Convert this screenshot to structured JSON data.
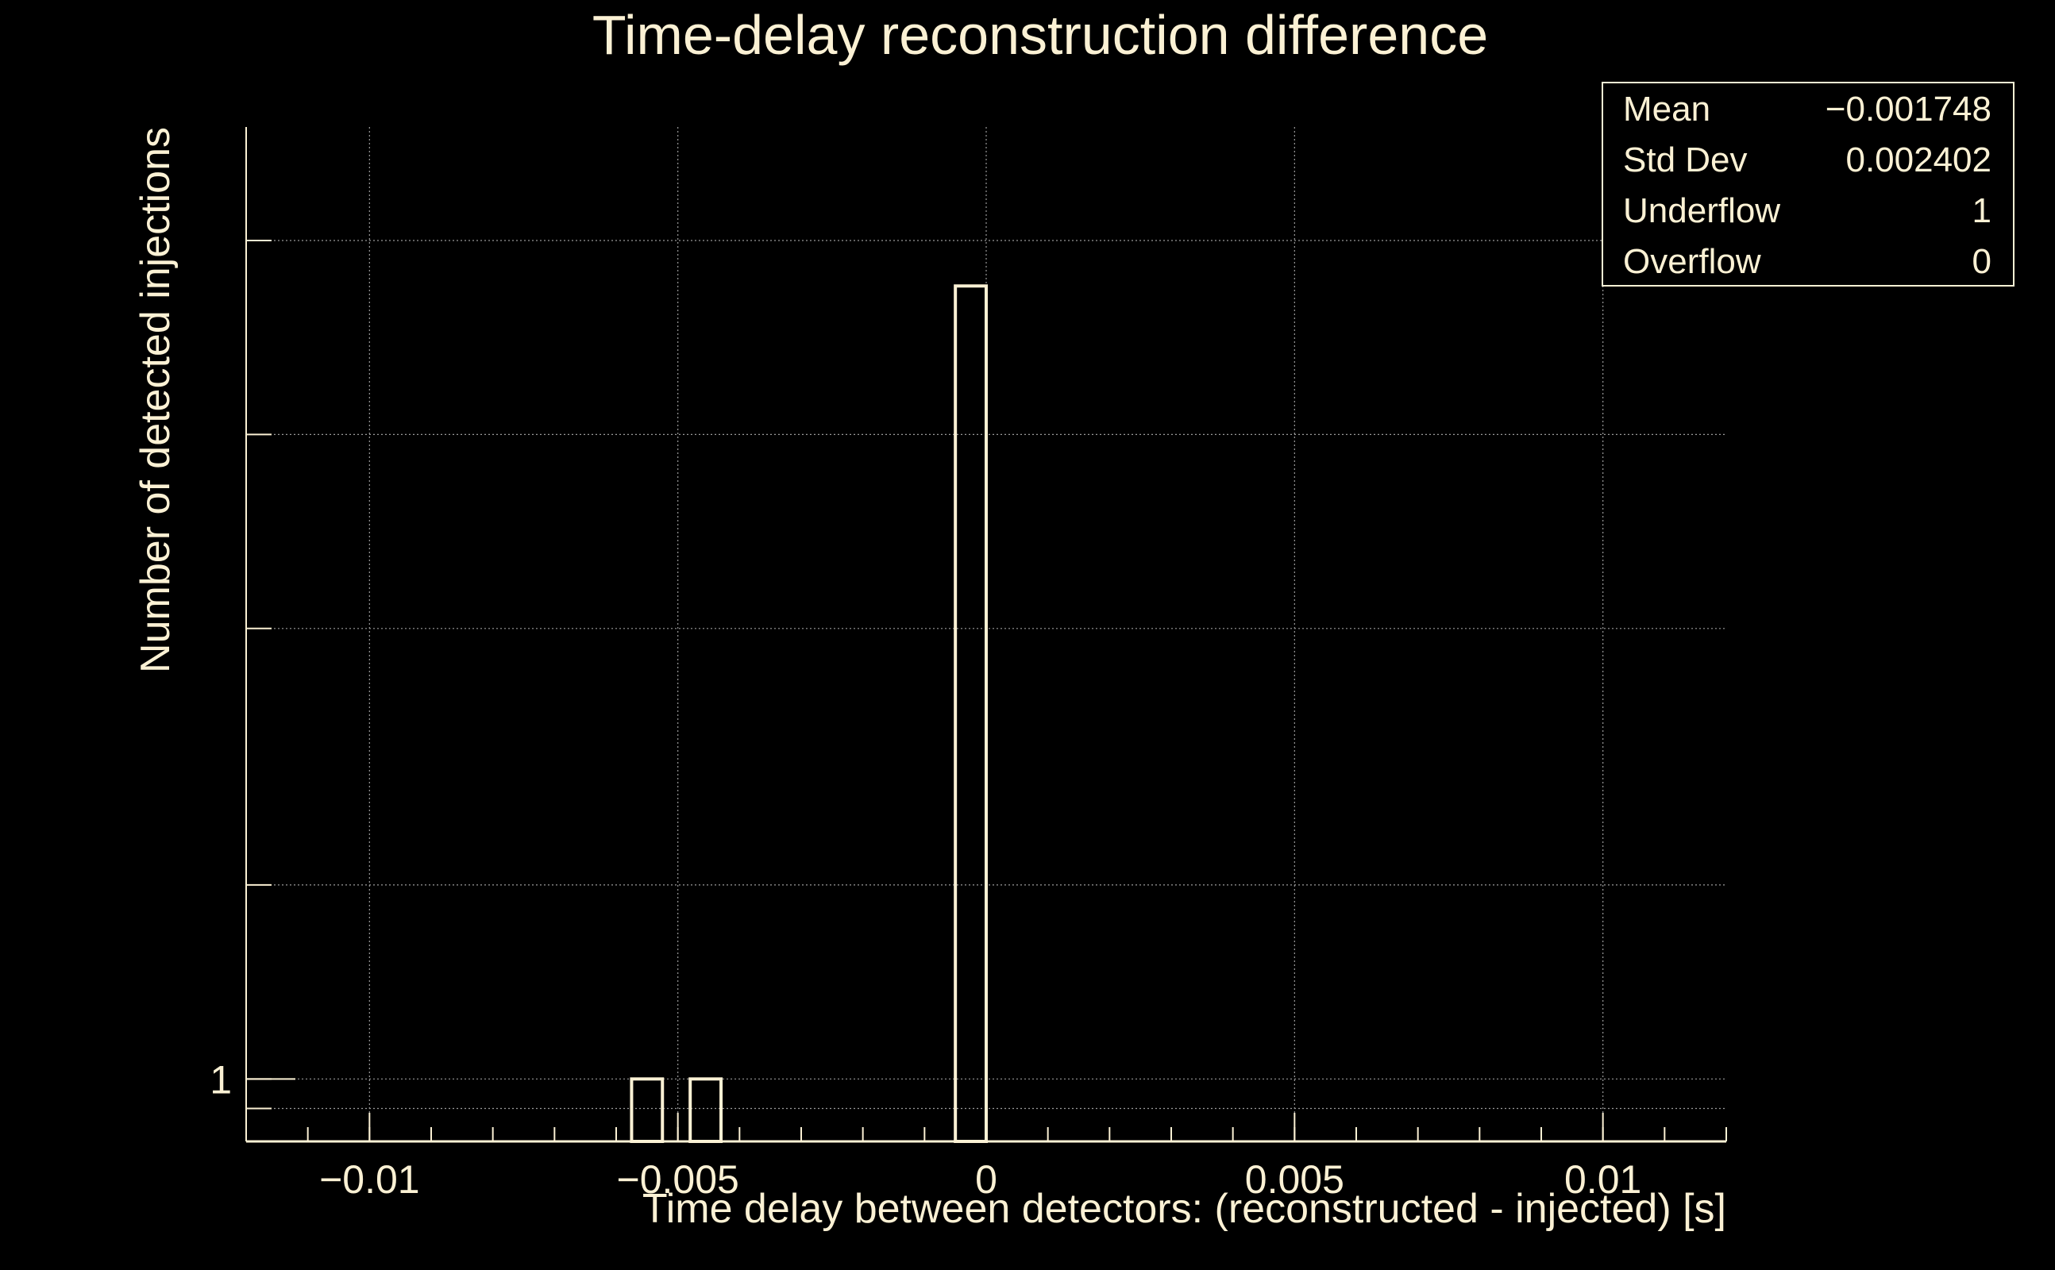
{
  "colors": {
    "background": "#000000",
    "foreground": "#fbf1d4",
    "grid": "#9a9a9a"
  },
  "chart_data": {
    "type": "bar",
    "title": "Time-delay reconstruction difference",
    "xlabel": "Time delay between detectors: (reconstructed - injected) [s]",
    "ylabel": "Number of detected injections",
    "xlim": [
      -0.012,
      0.012
    ],
    "y_scale": "log",
    "ylim": [
      0.8,
      30
    ],
    "grid": true,
    "x_ticks": [
      {
        "value": -0.01,
        "label": "−0.01"
      },
      {
        "value": -0.005,
        "label": "−0.005"
      },
      {
        "value": 0,
        "label": "0"
      },
      {
        "value": 0.005,
        "label": "0.005"
      },
      {
        "value": 0.01,
        "label": "0.01"
      }
    ],
    "y_ticks_labeled": [
      {
        "value": 1,
        "label": "1"
      }
    ],
    "y_grid_values": [
      0.9,
      1,
      2,
      5,
      10,
      20
    ],
    "bars": [
      {
        "x_start": -0.00575,
        "x_end": -0.00525,
        "count": 1
      },
      {
        "x_start": -0.0048,
        "x_end": -0.0043,
        "count": 1
      },
      {
        "x_start": -0.0005,
        "x_end": 0.0,
        "count": 17
      }
    ],
    "stats": [
      {
        "label": "Mean",
        "value": "−0.001748"
      },
      {
        "label": "Std Dev",
        "value": "0.002402"
      },
      {
        "label": "Underflow",
        "value": "1"
      },
      {
        "label": "Overflow",
        "value": "0"
      }
    ],
    "legend_placement": "top-right"
  }
}
